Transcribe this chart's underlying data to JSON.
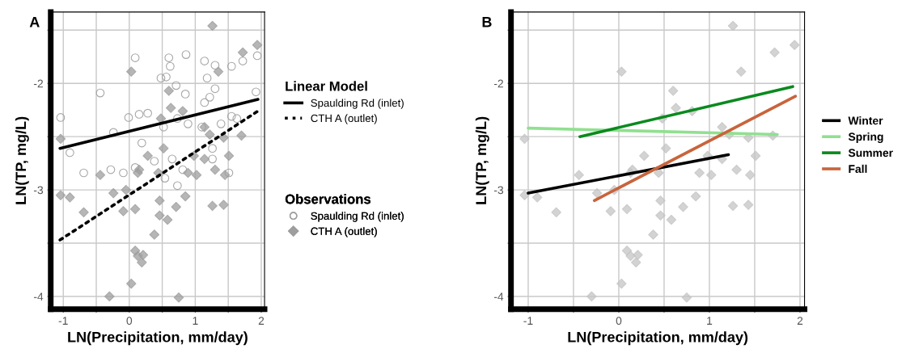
{
  "chart_data": [
    {
      "type": "scatter",
      "title": "A",
      "xlabel": "LN(Precipitation, mm/day)",
      "ylabel": "LN(TP, mg/L)",
      "legend_title": [
        "Linear Model",
        "Observations"
      ],
      "legend": "right",
      "grid": true,
      "xlim": [
        -1.19,
        2.05
      ],
      "ylim": [
        -4.12,
        -1.33
      ],
      "xticks": [
        -1,
        {
          "value": -0.5,
          "label": null
        },
        0,
        {
          "value": 0.5,
          "label": null
        },
        1,
        {
          "value": 1.5,
          "label": null
        },
        2
      ],
      "yticks": [
        -4,
        {
          "value": -3.5,
          "label": null
        },
        -3,
        {
          "value": -2.5,
          "label": null
        },
        -2,
        {
          "value": -1.5,
          "label": null
        }
      ],
      "series": [
        {
          "name": "Spaulding Rd (inlet)",
          "type": "line",
          "color": "#000000",
          "line_style": "solid",
          "marker": "none",
          "x": [
            -1.05,
            1.95
          ],
          "values": [
            -2.61,
            -2.15
          ]
        },
        {
          "name": "CTH A (outlet)",
          "type": "line",
          "color": "#000000",
          "line_style": "dotted",
          "marker": "none",
          "x": [
            -1.05,
            1.95
          ],
          "values": [
            -3.47,
            -2.26
          ]
        },
        {
          "name": "Spaulding Rd (inlet)",
          "color": "#9e9e9e",
          "marker": "circle",
          "x": [
            0.09,
            0.6,
            0.86,
            1.14,
            1.3,
            1.55,
            1.72,
            1.94,
            0.62,
            0.48,
            0.56,
            0.71,
            0.85,
            1.18,
            1.3,
            1.22,
            -0.44,
            -1.04,
            -0.24,
            0.15,
            0.28,
            -0.01,
            0.52,
            0.73,
            0.89,
            1.1,
            1.39,
            1.55,
            1.63,
            1.92,
            -0.9,
            -0.69,
            -0.28,
            -0.09,
            0.19,
            0.38,
            0.65,
            0.81,
            1.26,
            1.51,
            1.26,
            1.14,
            0.54,
            0.73,
            0.09
          ],
          "values": [
            -1.76,
            -1.76,
            -1.73,
            -1.79,
            -1.83,
            -1.84,
            -1.79,
            -1.74,
            -1.84,
            -1.95,
            -1.94,
            -2.02,
            -2.1,
            -1.95,
            -2.05,
            -2.13,
            -2.09,
            -2.32,
            -2.46,
            -2.29,
            -2.28,
            -2.32,
            -2.41,
            -2.33,
            -2.38,
            -2.41,
            -2.38,
            -2.31,
            -2.33,
            -2.08,
            -2.65,
            -2.84,
            -2.81,
            -2.84,
            -2.56,
            -2.73,
            -2.71,
            -2.81,
            -2.71,
            -2.84,
            -2.61,
            -2.18,
            -2.89,
            -2.96,
            -2.79
          ]
        },
        {
          "name": "CTH A (outlet)",
          "color": "#9e9e9e",
          "marker": "diamond",
          "x": [
            1.26,
            1.94,
            1.72,
            1.35,
            0.03,
            0.6,
            0.63,
            0.81,
            0.48,
            1.14,
            1.22,
            1.43,
            1.7,
            -1.04,
            0.52,
            0.28,
            0.98,
            1.14,
            1.51,
            1.3,
            0.15,
            0.44,
            0.89,
            -1.04,
            -0.9,
            -0.44,
            -0.24,
            -0.05,
            0.13,
            0.46,
            0.09,
            -0.09,
            -0.69,
            0.46,
            0.58,
            0.71,
            0.85,
            1.26,
            1.43,
            1.45,
            1.02,
            0.38,
            0.09,
            0.13,
            0.21,
            0.19,
            0.03,
            -0.3,
            0.75
          ],
          "values": [
            -1.46,
            -1.64,
            -1.71,
            -1.89,
            -1.89,
            -2.07,
            -2.23,
            -2.26,
            -2.33,
            -2.41,
            -2.48,
            -2.51,
            -2.49,
            -2.52,
            -2.61,
            -2.68,
            -2.68,
            -2.71,
            -2.68,
            -2.81,
            -2.81,
            -2.84,
            -2.84,
            -3.05,
            -3.07,
            -2.86,
            -3.03,
            -3.0,
            -2.84,
            -3.1,
            -3.18,
            -3.2,
            -3.21,
            -3.24,
            -3.28,
            -3.16,
            -3.06,
            -3.15,
            -3.14,
            -2.86,
            -2.86,
            -3.42,
            -3.57,
            -3.62,
            -3.61,
            -3.68,
            -3.88,
            -4.0,
            -4.01
          ]
        }
      ]
    },
    {
      "type": "scatter",
      "title": "B",
      "xlabel": "LN(Precipitation, mm/day)",
      "ylabel": "LN(TP, mg/L)",
      "legend": "right",
      "grid": true,
      "xlim": [
        -1.19,
        2.05
      ],
      "ylim": [
        -4.12,
        -1.33
      ],
      "xticks": [
        -1,
        {
          "value": -0.5,
          "label": null
        },
        0,
        {
          "value": 0.5,
          "label": null
        },
        1,
        {
          "value": 1.5,
          "label": null
        },
        2
      ],
      "yticks": [
        -4,
        {
          "value": -3.5,
          "label": null
        },
        -3,
        {
          "value": -2.5,
          "label": null
        },
        -2,
        {
          "value": -1.5,
          "label": null
        }
      ],
      "series": [
        {
          "color": "#c4c4c4",
          "marker": "diamond",
          "x": [
            1.26,
            1.94,
            1.72,
            1.35,
            0.03,
            0.6,
            0.63,
            0.81,
            0.48,
            1.14,
            1.22,
            1.43,
            1.7,
            -1.04,
            0.52,
            0.28,
            0.98,
            1.14,
            1.51,
            1.3,
            0.15,
            0.44,
            0.89,
            -1.04,
            -0.9,
            -0.44,
            -0.24,
            -0.05,
            0.13,
            0.46,
            0.09,
            -0.09,
            -0.69,
            0.46,
            0.58,
            0.71,
            0.85,
            1.26,
            1.43,
            1.45,
            1.02,
            0.38,
            0.09,
            0.13,
            0.21,
            0.19,
            0.03,
            -0.3,
            0.75
          ],
          "values": [
            -1.46,
            -1.64,
            -1.71,
            -1.89,
            -1.89,
            -2.07,
            -2.23,
            -2.26,
            -2.33,
            -2.41,
            -2.48,
            -2.51,
            -2.49,
            -2.52,
            -2.61,
            -2.68,
            -2.68,
            -2.71,
            -2.68,
            -2.81,
            -2.81,
            -2.84,
            -2.84,
            -3.05,
            -3.07,
            -2.86,
            -3.03,
            -3.0,
            -2.84,
            -3.1,
            -3.18,
            -3.2,
            -3.21,
            -3.24,
            -3.28,
            -3.16,
            -3.06,
            -3.15,
            -3.14,
            -2.86,
            -2.86,
            -3.42,
            -3.57,
            -3.62,
            -3.61,
            -3.68,
            -3.88,
            -4.0,
            -4.01
          ]
        },
        {
          "name": "Winter",
          "type": "line",
          "color": "#000000",
          "line_style": "solid",
          "marker": "none",
          "x": [
            -1.0,
            1.21
          ],
          "values": [
            -3.03,
            -2.67
          ]
        },
        {
          "name": "Spring",
          "type": "line",
          "color": "#90e090",
          "line_style": "solid",
          "marker": "none",
          "x": [
            -1.0,
            1.75
          ],
          "values": [
            -2.42,
            -2.48
          ]
        },
        {
          "name": "Summer",
          "type": "line",
          "color": "#0a8a1e",
          "line_style": "solid",
          "marker": "none",
          "x": [
            -0.43,
            1.92
          ],
          "values": [
            -2.5,
            -2.03
          ]
        },
        {
          "name": "Fall",
          "type": "line",
          "color": "#c8643c",
          "line_style": "solid",
          "marker": "none",
          "x": [
            -0.27,
            1.95
          ],
          "values": [
            -3.1,
            -2.12
          ]
        }
      ]
    }
  ]
}
